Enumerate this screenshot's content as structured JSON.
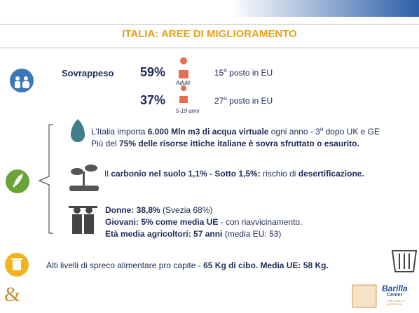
{
  "title": "ITALIA: AREE DI MIGLIORAMENTO",
  "overweight": {
    "label": "Sovrappeso",
    "rows": [
      {
        "percent": "59%",
        "group": "Adulti",
        "rank": "15",
        "rank_sup": "o",
        "rank_text": "posto in EU"
      },
      {
        "percent": "37%",
        "group": "5-19 anni",
        "rank": "27",
        "rank_sup": "o",
        "rank_text": "posto in EU"
      }
    ]
  },
  "water": [
    [
      {
        "text": "L’Italia importa ",
        "style": "normal"
      },
      {
        "text": "6.000 Mln m3 di acqua virtuale",
        "style": "bold"
      },
      {
        "text": " ogni anno - 3",
        "style": "normal"
      },
      {
        "text": "o",
        "style": "sup"
      },
      {
        "text": " dopo UK e GE",
        "style": "normal"
      }
    ],
    [
      {
        "text": "Più del ",
        "style": "normal"
      },
      {
        "text": "75% delle risorse ittiche italiane è sovra sfruttato o esaurito.",
        "style": "bold"
      }
    ]
  ],
  "soil": [
    [
      {
        "text": "Il ",
        "style": "normal"
      },
      {
        "text": "carbonio nel suolo 1,1% - Sotto 1,5%:",
        "style": "bold"
      },
      {
        "text": "  rischio di ",
        "style": "normal"
      },
      {
        "text": "desertificazione.",
        "style": "bold"
      }
    ]
  ],
  "farmers": [
    [
      {
        "text": "Donne: 38,8%",
        "style": "bold"
      },
      {
        "text": " (Svezia  68%)",
        "style": "normal"
      }
    ],
    [
      {
        "text": "Giovani: 5% come media UE",
        "style": "bold"
      },
      {
        "text": " - con riavvicinamento.",
        "style": "normal"
      }
    ],
    [
      {
        "text": "Età media agricoltori: 57 anni",
        "style": "bold"
      },
      {
        "text": " (media EU: 53)",
        "style": "normal"
      }
    ]
  ],
  "waste": [
    [
      {
        "text": "Alti livelli di spreco alimentare pro capite - ",
        "style": "normal"
      },
      {
        "text": "65 Kg di cibo. Media UE: 58 Kg.",
        "style": "bold"
      }
    ]
  ],
  "corner_mark": "&",
  "logo": {
    "name": "Barilla",
    "sub": "Center",
    "tagline": "FOR FOOD & NUTRITION"
  }
}
